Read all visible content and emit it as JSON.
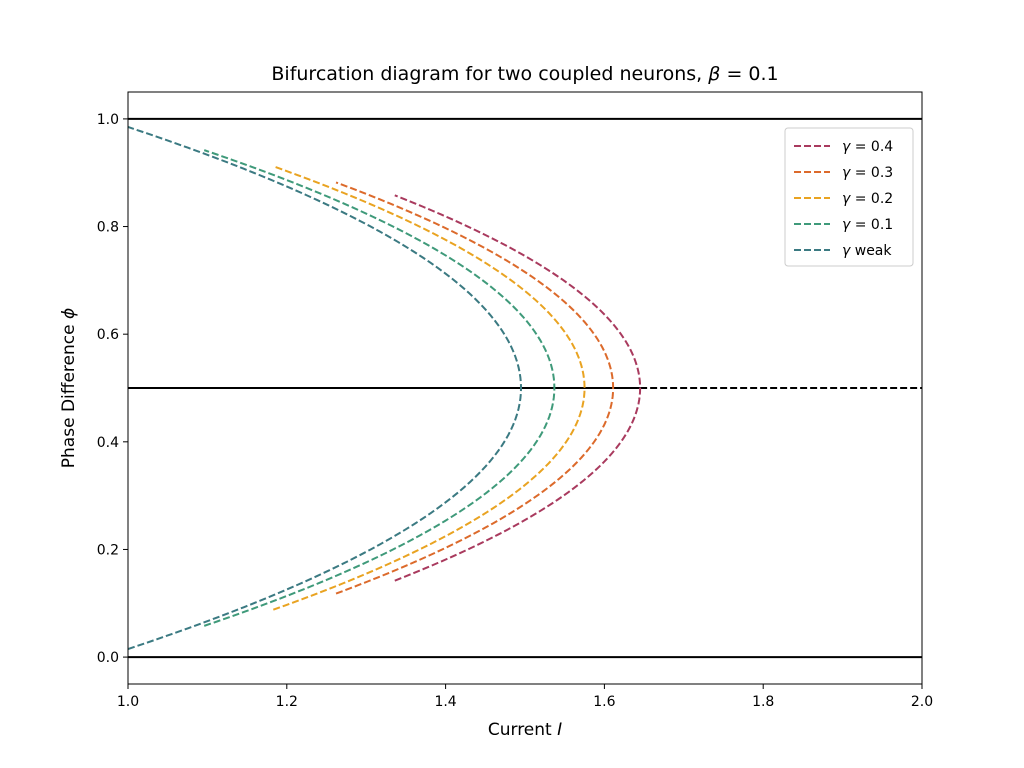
{
  "chart_data": {
    "type": "line",
    "title": {
      "text": "Bifurcation diagram for two coupled neurons, ",
      "symbol": "β",
      "eq": " = 0.1"
    },
    "xlabel": {
      "text": "Current ",
      "symbol": "I"
    },
    "ylabel": {
      "text": "Phase Difference ",
      "symbol": "ϕ"
    },
    "xlim": [
      1.0,
      2.0
    ],
    "ylim": [
      -0.05,
      1.05
    ],
    "xticks": [
      "1.0",
      "1.2",
      "1.4",
      "1.6",
      "1.8",
      "2.0"
    ],
    "yticks": [
      "0.0",
      "0.2",
      "0.4",
      "0.6",
      "0.8",
      "1.0"
    ],
    "grid": false,
    "legend_position": "top-right",
    "reference_lines": [
      {
        "y": 1.0,
        "x": [
          1.0,
          2.0
        ],
        "style": "solid",
        "color": "#000000"
      },
      {
        "y": 0.0,
        "x": [
          1.0,
          2.0
        ],
        "style": "solid",
        "color": "#000000"
      },
      {
        "y": 0.5,
        "x": [
          1.0,
          1.645
        ],
        "style": "solid",
        "color": "#000000"
      },
      {
        "y": 0.5,
        "x": [
          1.645,
          2.0
        ],
        "style": "dashed",
        "color": "#000000"
      }
    ],
    "series": [
      {
        "name": "γ = 0.4",
        "name_symbol": "γ",
        "name_rest": " = 0.4",
        "color": "#a93a5e",
        "x_start": 1.336,
        "x_turn": 1.645,
        "y_start_low": 0.142
      },
      {
        "name": "γ = 0.3",
        "name_symbol": "γ",
        "name_rest": " = 0.3",
        "color": "#dc6a2b",
        "x_start": 1.262,
        "x_turn": 1.611,
        "y_start_low": 0.118
      },
      {
        "name": "γ = 0.2",
        "name_symbol": "γ",
        "name_rest": " = 0.2",
        "color": "#e9a321",
        "x_start": 1.183,
        "x_turn": 1.575,
        "y_start_low": 0.088
      },
      {
        "name": "γ = 0.1",
        "name_symbol": "γ",
        "name_rest": " = 0.1",
        "color": "#3f9a7a",
        "x_start": 1.096,
        "x_turn": 1.537,
        "y_start_low": 0.058
      },
      {
        "name": "γ weak",
        "name_symbol": "γ",
        "name_rest": " weak",
        "color": "#3b7a82",
        "x_start": 1.0,
        "x_turn": 1.495,
        "y_start_low": 0.015
      }
    ]
  }
}
